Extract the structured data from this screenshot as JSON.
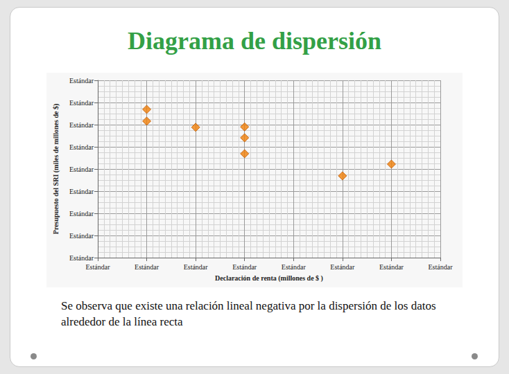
{
  "chart_data": {
    "type": "scatter",
    "title": "Diagrama de dispersión",
    "x_label": "Declaración de renta (millones de $ )",
    "y_label": "Presupuesto del SRI (miles de millones de $)",
    "annotations": [
      "Se observa  que existe una relación lineal negativa por la dispersión de los datos alrededor de la línea recta"
    ],
    "x": [
      1,
      1,
      2,
      3,
      3,
      3,
      5,
      6
    ],
    "values": [
      6.69,
      6.16,
      5.88,
      5.9,
      5.41,
      4.69,
      3.69,
      4.22
    ],
    "color": "#f07f09",
    "marker": "diamond",
    "xlim": [
      0,
      7
    ],
    "xticks": [
      {
        "value": 0,
        "label": "Estándar"
      },
      {
        "value": 1,
        "label": "Estándar"
      },
      {
        "value": 2,
        "label": "Estándar"
      },
      {
        "value": 3,
        "label": "Estándar"
      },
      {
        "value": 4,
        "label": "Estándar"
      },
      {
        "value": 5,
        "label": "Estándar"
      },
      {
        "value": 6,
        "label": "Estándar"
      },
      {
        "value": 7,
        "label": "Estándar"
      }
    ],
    "ylim": [
      0,
      8
    ],
    "yticks": [
      {
        "value": 0,
        "label": "Estándar"
      },
      {
        "value": 1,
        "label": "Estándar"
      },
      {
        "value": 2,
        "label": "Estándar"
      },
      {
        "value": 3,
        "label": "Estándar"
      },
      {
        "value": 4,
        "label": "Estándar"
      },
      {
        "value": 5,
        "label": "Estándar"
      },
      {
        "value": 6,
        "label": "Estándar"
      },
      {
        "value": 7,
        "label": "Estándar"
      },
      {
        "value": 8,
        "label": "Estándar"
      }
    ],
    "grid": true
  }
}
